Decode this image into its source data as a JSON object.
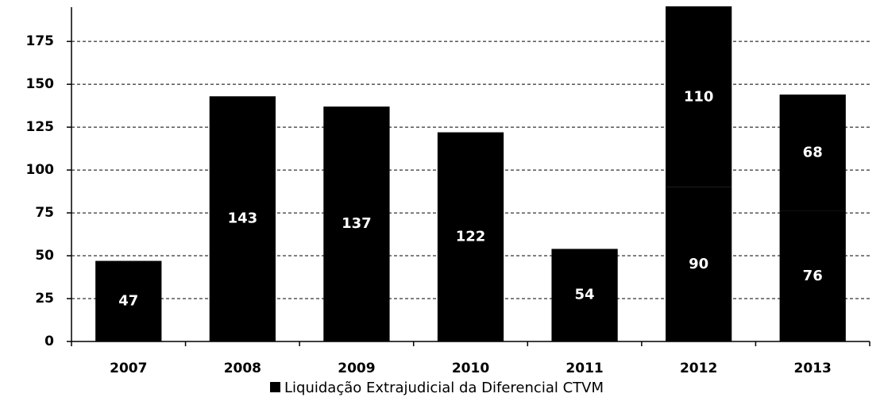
{
  "chart_data": {
    "type": "stacked_bar",
    "categories": [
      "2007",
      "2008",
      "2009",
      "2010",
      "2011",
      "2012",
      "2013"
    ],
    "series": [
      {
        "name": "Liquidação Extrajudicial da Diferencial CTVM",
        "color": "#000000",
        "values": [
          47,
          143,
          137,
          122,
          54,
          90,
          76
        ]
      },
      {
        "color": "#000000",
        "values": [
          null,
          null,
          null,
          null,
          null,
          110,
          68
        ]
      }
    ],
    "ylim": [
      0,
      195
    ],
    "yticks": [
      0,
      25,
      50,
      75,
      100,
      125,
      150,
      175
    ],
    "grid": true,
    "legend": "bottom"
  }
}
